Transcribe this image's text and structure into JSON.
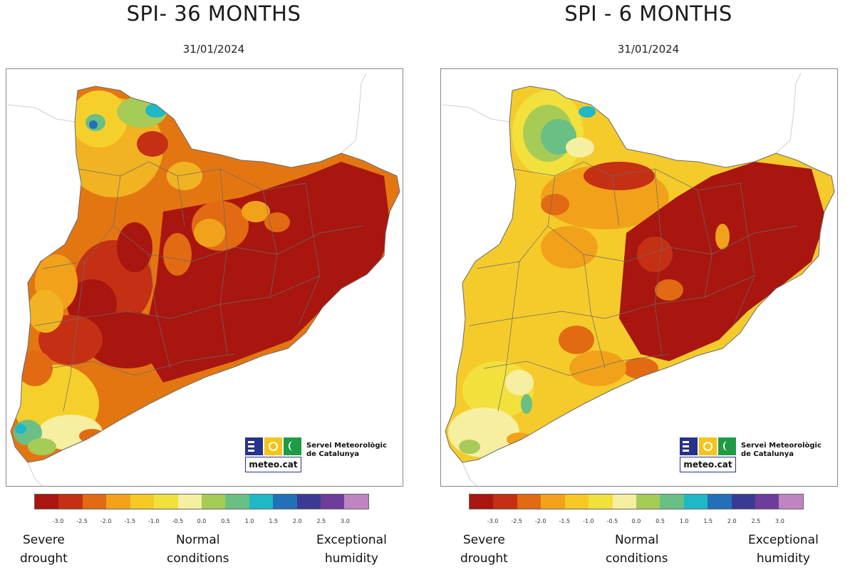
{
  "panels": [
    {
      "title": "SPI- 36 MONTHS",
      "date": "31/01/2024"
    },
    {
      "title": "SPI - 6 MONTHS",
      "date": "31/01/2024"
    }
  ],
  "legend": {
    "colors": [
      "#a8160f",
      "#c52f13",
      "#e26a12",
      "#f1a21a",
      "#f6c823",
      "#f2e03c",
      "#f6eea0",
      "#a6cb56",
      "#6ac084",
      "#1fb8c6",
      "#2370b8",
      "#3a3a94",
      "#6e3c9a",
      "#c084c0"
    ],
    "ticks": [
      "-3.0",
      "-2.5",
      "-2.0",
      "-1.5",
      "-1.0",
      "-0.5",
      "0.0",
      "0.5",
      "1.0",
      "1.5",
      "2.0",
      "2.5",
      "3.0"
    ],
    "captions": {
      "severe_line1": "Severe",
      "severe_line2": "drought",
      "normal_line1": "Normal",
      "normal_line2": "conditions",
      "exceptional_line1": "Exceptional",
      "exceptional_line2": "humidity"
    }
  },
  "logo": {
    "wordmark": "meteo.cat",
    "org_line1": "Servei Meteorològic",
    "org_line2": "de Catalunya"
  },
  "map_colors": {
    "border": "#6b6b6b",
    "outline": "#cfcfcf"
  }
}
